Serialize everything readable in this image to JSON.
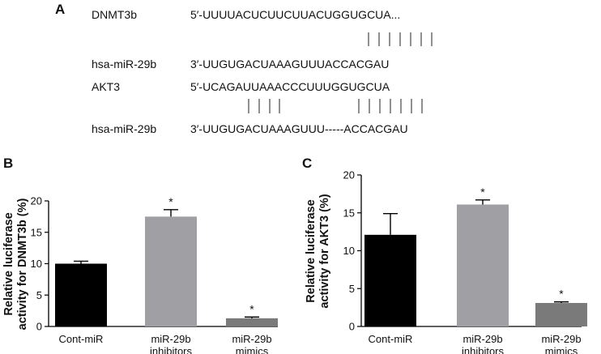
{
  "panel_a": {
    "letter": "A",
    "rows": [
      {
        "name": "DNMT3b",
        "seq": "5′-UUUUACUCUUCUUACUGGUGCUA..."
      },
      {
        "name": "hsa-miR-29b",
        "seq": "3′-UUGUGACUAAAGUUUACCACGAU"
      },
      {
        "name": "AKT3",
        "seq": "5′-UCAGAUUAAACCCUUUGGUGCUA"
      },
      {
        "name": "hsa-miR-29b",
        "seq": "3′-UUGUGACUAAAGUUU-----ACCACGAU"
      }
    ]
  },
  "chart_data": [
    {
      "panel": "B",
      "type": "bar",
      "categories": [
        "Cont-miR",
        "miR-29b inhibitors",
        "miR-29b mimics"
      ],
      "category_lines": [
        [
          "Cont-miR"
        ],
        [
          "miR-29b",
          "inhibitors"
        ],
        [
          "miR-29b",
          "mimics"
        ]
      ],
      "values": [
        10,
        17.5,
        1.3
      ],
      "errors": [
        0.4,
        1.1,
        0.2
      ],
      "significance": [
        "",
        "*",
        "*"
      ],
      "colors": [
        "#000000",
        "#a0a0a4",
        "#7a7a7a"
      ],
      "ylabel_lines": [
        "Relative luciferase",
        "activity for DNMT3b (%)"
      ],
      "ylim": [
        0,
        20
      ],
      "yticks": [
        0,
        5,
        10,
        15,
        20
      ],
      "grid": false
    },
    {
      "panel": "C",
      "type": "bar",
      "categories": [
        "Cont-miR",
        "miR-29b inhibitors",
        "miR-29b mimics"
      ],
      "category_lines": [
        [
          "Cont-miR"
        ],
        [
          "miR-29b",
          "inhibitors"
        ],
        [
          "miR-29b",
          "mimics"
        ]
      ],
      "values": [
        12.1,
        16.1,
        3.1
      ],
      "errors": [
        2.8,
        0.6,
        0.15
      ],
      "significance": [
        "",
        "*",
        "*"
      ],
      "colors": [
        "#000000",
        "#a0a0a4",
        "#7a7a7a"
      ],
      "ylabel_lines": [
        "Relative luciferase",
        "activity for AKT3 (%)"
      ],
      "ylim": [
        0,
        20
      ],
      "yticks": [
        0,
        5,
        10,
        15,
        20
      ],
      "grid": false
    }
  ]
}
